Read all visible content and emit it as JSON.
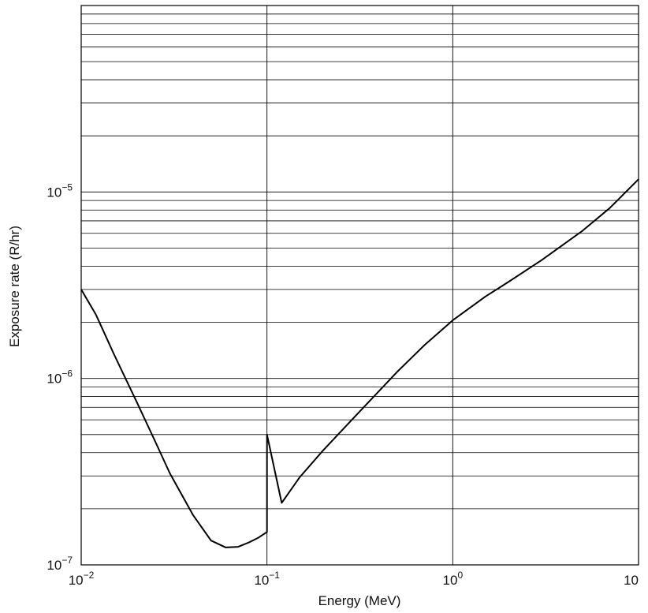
{
  "chart_data": {
    "type": "line",
    "title": "",
    "xlabel": "Energy (MeV)",
    "ylabel": "Exposure rate (R/hr)",
    "x_scale": "log",
    "y_scale": "log",
    "xlim": [
      0.01,
      10
    ],
    "ylim": [
      1e-07,
      0.0001
    ],
    "grid": "horizontal log grid lines at every minor tick; vertical lines at each decade",
    "x_ticks": [
      {
        "value": 0.01,
        "base": "10",
        "exp": "−2"
      },
      {
        "value": 0.1,
        "base": "10",
        "exp": "−1"
      },
      {
        "value": 1,
        "base": "10",
        "exp": "0"
      },
      {
        "value": 10,
        "base": "10",
        "exp": ""
      }
    ],
    "y_ticks": [
      {
        "value": 1e-07,
        "base": "10",
        "exp": "−7"
      },
      {
        "value": 1e-06,
        "base": "10",
        "exp": "−6"
      },
      {
        "value": 1e-05,
        "base": "10",
        "exp": "−5"
      }
    ],
    "series": [
      {
        "x": [
          0.01,
          0.012,
          0.015,
          0.02,
          0.025,
          0.03,
          0.04,
          0.05,
          0.06,
          0.07,
          0.08,
          0.09,
          0.1,
          0.1,
          0.12,
          0.15,
          0.2,
          0.3,
          0.5,
          0.7,
          1,
          1.5,
          2,
          3,
          5,
          7,
          10
        ],
        "y": [
          3e-06,
          2.2e-06,
          1.35e-06,
          7.4e-07,
          4.6e-07,
          3.1e-07,
          1.85e-07,
          1.35e-07,
          1.24e-07,
          1.25e-07,
          1.32e-07,
          1.4e-07,
          1.5e-07,
          5e-07,
          2.15e-07,
          2.95e-07,
          4.1e-07,
          6.3e-07,
          1.08e-06,
          1.5e-06,
          2.05e-06,
          2.75e-06,
          3.3e-06,
          4.3e-06,
          6.2e-06,
          8.2e-06,
          1.17e-05
        ]
      }
    ]
  }
}
